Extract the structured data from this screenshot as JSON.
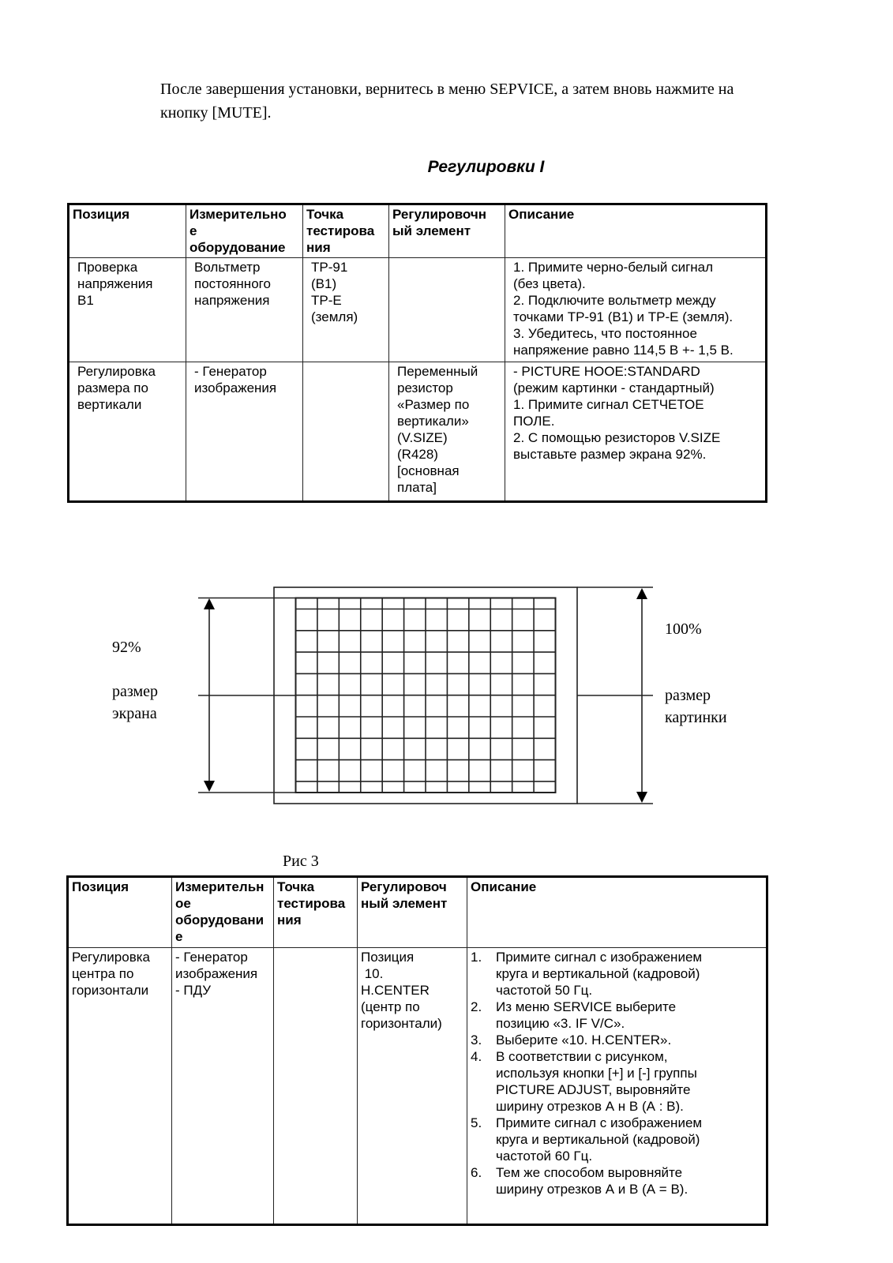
{
  "intro": {
    "line1": "После завершения установки, вернитесь в меню SEPVICE, а затем вновь нажмите на",
    "line2": "кнопку [MUTE]."
  },
  "section_title": "Регулировки I",
  "table1": {
    "headers": [
      [
        "Позиция"
      ],
      [
        "Измерительно",
        "е",
        "оборудование"
      ],
      [
        "Точка",
        "тестирова",
        "ния"
      ],
      [
        "Регулировочн",
        "ый элемент"
      ],
      [
        "Описание"
      ]
    ],
    "rows": [
      {
        "position": [
          "Проверка",
          "напряжения",
          "B1"
        ],
        "equipment": [
          "Вольтметр",
          "постоянного",
          "напряжения"
        ],
        "test_point": [
          "TP-91",
          "(B1)",
          "TP-E",
          "(земля)"
        ],
        "adjust": [],
        "description": [
          "1. Примите черно-белый сигнал",
          "(без цвета).",
          "2. Подключите вольтметр между",
          "точками TP-91 (B1) и TP-E (земля).",
          "3. Убедитесь, что постоянное",
          "напряжение равно 114,5 В +- 1,5 В."
        ]
      },
      {
        "position": [
          "Регулировка",
          "размера по",
          "вертикали"
        ],
        "equipment": [
          "- Генератор",
          "изображения"
        ],
        "test_point": [],
        "adjust": [
          "Переменный",
          "резистор",
          "«Размер по",
          "вертикали»",
          "(V.SIZE)",
          "(R428)",
          "[основная",
          "плата]"
        ],
        "description": [
          "- PICTURE HOOE:STANDARD",
          "(режим картинки - стандартный)",
          "1. Примите сигнал СЕТЧЕТОЕ",
          "ПОЛЕ.",
          "2. С помощью резисторов V.SIZE",
          "выставьте размер экрана 92%."
        ]
      }
    ]
  },
  "figure": {
    "left_percent": "92%",
    "left_label": [
      "размер",
      "экрана"
    ],
    "right_percent": "100%",
    "right_label": [
      "размер",
      "картинки"
    ],
    "caption": "Рис 3"
  },
  "table2": {
    "headers": [
      [
        "Позиция"
      ],
      [
        "Измерительн",
        "ое",
        "оборудовани",
        "е"
      ],
      [
        "Точка",
        "тестирова",
        "ния"
      ],
      [
        "Регулировоч",
        "ный элемент"
      ],
      [
        "Описание"
      ]
    ],
    "row": {
      "position": [
        "Регулировка",
        "центра по",
        "горизонтали"
      ],
      "equipment": [
        "- Генератор",
        "изображения",
        "- ПДУ"
      ],
      "test_point": [],
      "adjust": [
        "Позиция",
        " 10.",
        "H.CENTER",
        "(центр по",
        "горизонтали)"
      ],
      "steps": [
        {
          "num": "1.",
          "lines": [
            "Примите сигнал с изображением",
            "круга и вертикальной (кадровой)",
            "частотой 50 Гц."
          ]
        },
        {
          "num": "2.",
          "lines": [
            "Из меню SERVICE выберите",
            "позицию «3. IF V/C»."
          ]
        },
        {
          "num": "3.",
          "lines": [
            "Выберите «10. H.CENTER»."
          ]
        },
        {
          "num": "4.",
          "lines": [
            "В соответствии с рисунком,",
            "используя кнопки [+] и [-] группы",
            "PICTURE ADJUST, выровняйте",
            "ширину отрезков А н В (А : В)."
          ]
        },
        {
          "num": "5.",
          "lines": [
            "Примите сигнал с изображением",
            "круга и вертикальной (кадровой)",
            "частотой 60 Гц."
          ]
        },
        {
          "num": "6.",
          "lines": [
            "Тем же способом выровняйте",
            "ширину отрезков А и В (А = В)."
          ]
        }
      ]
    }
  }
}
